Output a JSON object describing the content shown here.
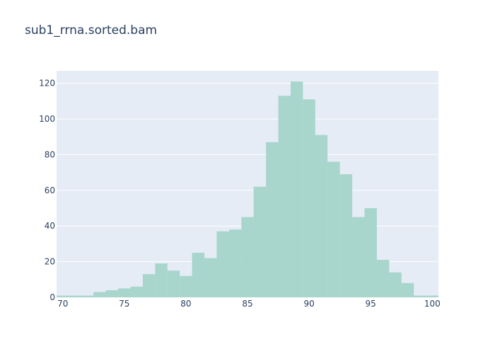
{
  "chart_data": {
    "type": "bar",
    "title": "sub1_rrna.sorted.bam",
    "xlabel": "",
    "ylabel": "",
    "xlim": [
      69.5,
      100.5
    ],
    "ylim": [
      0,
      127
    ],
    "bin_width": 1,
    "bin_edges_start": [
      69.5,
      70.5,
      71.5,
      72.5,
      73.5,
      74.5,
      75.5,
      76.5,
      77.5,
      78.5,
      79.5,
      80.5,
      81.5,
      82.5,
      83.5,
      84.5,
      85.5,
      86.5,
      87.5,
      88.5,
      89.5,
      90.5,
      91.5,
      92.5,
      93.5,
      94.5,
      95.5,
      96.5,
      97.5,
      98.5,
      99.5
    ],
    "values": [
      1,
      1,
      1,
      3,
      4,
      5,
      6,
      13,
      19,
      15,
      12,
      25,
      22,
      37,
      38,
      45,
      62,
      87,
      113,
      121,
      111,
      91,
      76,
      69,
      45,
      50,
      21,
      14,
      8,
      1,
      1
    ],
    "x_ticks": [
      70,
      75,
      80,
      85,
      90,
      95,
      100
    ],
    "y_ticks": [
      0,
      20,
      40,
      60,
      80,
      100,
      120
    ],
    "grid": true,
    "bar_color": "#a8d5cc",
    "plot_bg": "#e5ecf6"
  }
}
